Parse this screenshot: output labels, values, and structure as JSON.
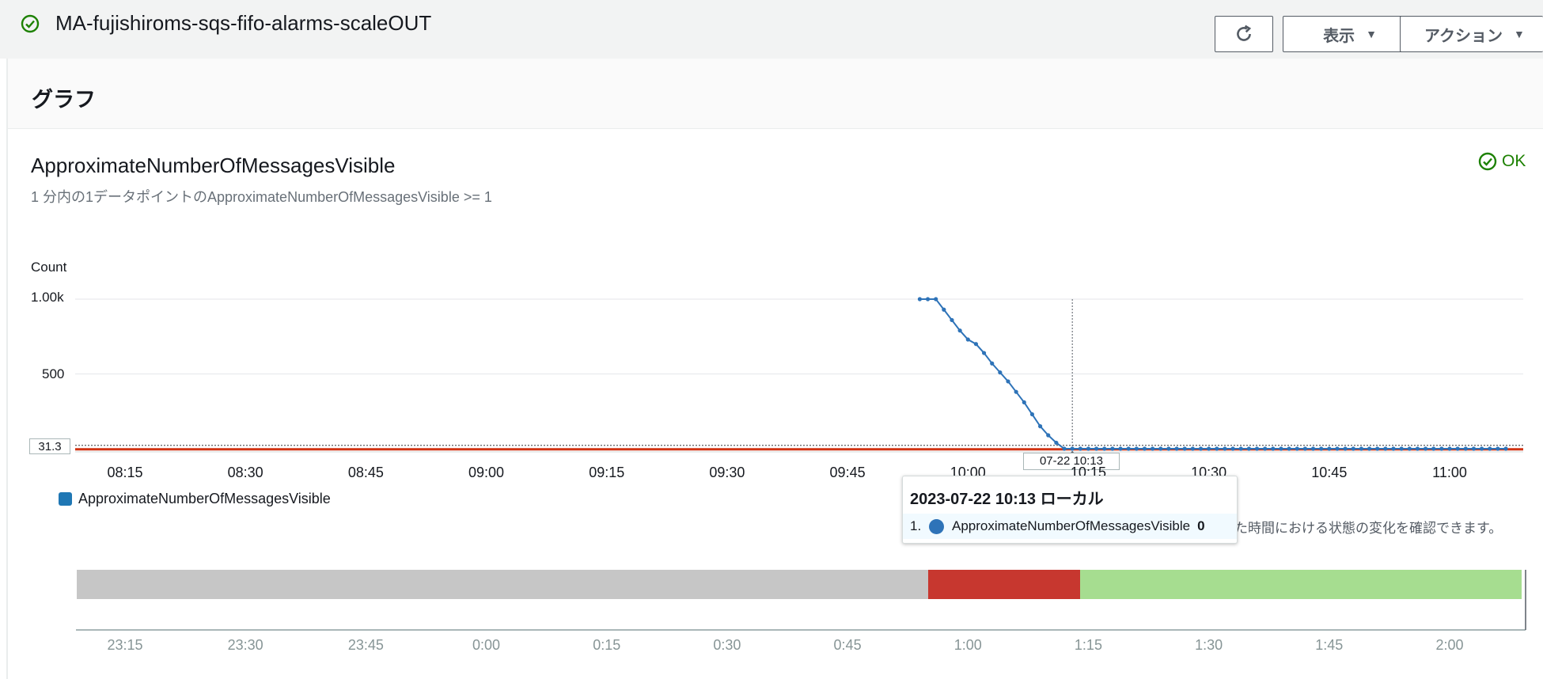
{
  "header": {
    "alarm_name": "MA-fujishiroms-sqs-fifo-alarms-scaleOUT",
    "view_label": "表示",
    "action_label": "アクション"
  },
  "panel": {
    "title": "グラフ"
  },
  "metric": {
    "title": "ApproximateNumberOfMessagesVisible",
    "subtitle": "1 分内の1データポイントのApproximateNumberOfMessagesVisible >= 1",
    "status": "OK"
  },
  "chart_data": {
    "type": "line",
    "ylabel": "Count",
    "y_ticks": [
      "1.00k",
      "500"
    ],
    "ylim": [
      0,
      1000
    ],
    "x_ticks": [
      "08:15",
      "08:30",
      "08:45",
      "09:00",
      "09:15",
      "09:30",
      "09:45",
      "10:00",
      "10:15",
      "10:30",
      "10:45",
      "11:00"
    ],
    "threshold_label": "31.3",
    "hover_x_label": "07-22 10:13",
    "series": [
      {
        "name": "ApproximateNumberOfMessagesVisible",
        "color": "#2e73b8",
        "x": [
          "09:54",
          "09:55",
          "09:56",
          "09:57",
          "09:58",
          "09:59",
          "10:00",
          "10:01",
          "10:02",
          "10:03",
          "10:04",
          "10:05",
          "10:06",
          "10:07",
          "10:08",
          "10:09",
          "10:10",
          "10:11",
          "10:12",
          "10:13",
          "10:14",
          "10:15",
          "10:16",
          "10:17",
          "10:18",
          "10:19",
          "10:20",
          "10:21",
          "10:22",
          "10:23",
          "10:24",
          "10:25",
          "10:26",
          "10:27",
          "10:28",
          "10:29",
          "10:30",
          "10:31",
          "10:32",
          "10:33",
          "10:34",
          "10:35",
          "10:36",
          "10:37",
          "10:38",
          "10:39",
          "10:40",
          "10:41",
          "10:42",
          "10:43",
          "10:44",
          "10:45",
          "10:46",
          "10:47",
          "10:48",
          "10:49",
          "10:50",
          "10:51",
          "10:52",
          "10:53",
          "10:54",
          "10:55",
          "10:56",
          "10:57",
          "10:58",
          "10:59",
          "11:00",
          "11:01",
          "11:02",
          "11:03",
          "11:04",
          "11:05",
          "11:06",
          "11:07"
        ],
        "values": [
          1000,
          1000,
          1000,
          930,
          860,
          790,
          730,
          700,
          640,
          570,
          510,
          450,
          380,
          310,
          230,
          150,
          90,
          40,
          0,
          0,
          0,
          0,
          0,
          0,
          0,
          0,
          0,
          0,
          0,
          0,
          0,
          0,
          0,
          0,
          0,
          0,
          0,
          0,
          0,
          0,
          0,
          0,
          0,
          0,
          0,
          0,
          0,
          0,
          0,
          0,
          0,
          0,
          0,
          0,
          0,
          0,
          0,
          0,
          0,
          0,
          0,
          0,
          0,
          0,
          0,
          0,
          0,
          0,
          0,
          0,
          0,
          0,
          0,
          0
        ]
      }
    ],
    "threshold_color": "#d13212"
  },
  "tooltip": {
    "title": "2023-07-22 10:13 ローカル",
    "index": "1.",
    "series_name": "ApproximateNumberOfMessagesVisible",
    "value": "0"
  },
  "description_fragment": "た時間における状態の変化を確認できます。",
  "history": {
    "x_ticks": [
      "23:15",
      "23:30",
      "23:45",
      "0:00",
      "0:15",
      "0:30",
      "0:45",
      "1:00",
      "1:15",
      "1:30",
      "1:45",
      "2:00"
    ],
    "segments": [
      {
        "state": "insufficient",
        "color": "#c6c6c6",
        "start": "23:09",
        "end": "0:55"
      },
      {
        "state": "alarm",
        "color": "#c7372f",
        "start": "0:55",
        "end": "1:14"
      },
      {
        "state": "ok",
        "color": "#a6dd90",
        "start": "1:14",
        "end": "2:09"
      }
    ]
  }
}
